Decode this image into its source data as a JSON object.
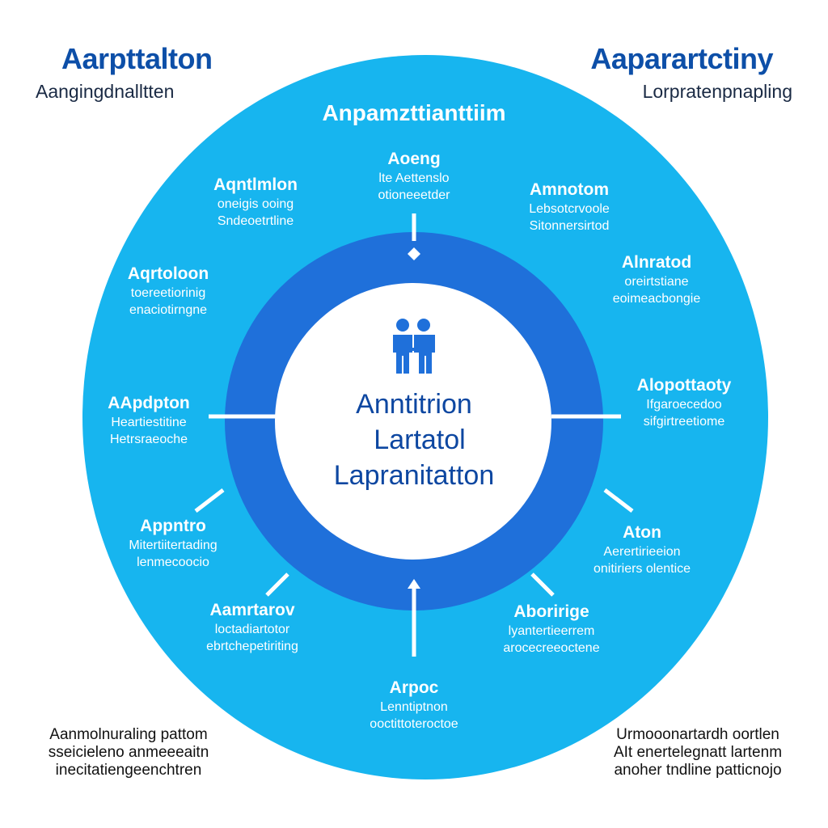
{
  "corners": {
    "top_left": {
      "title": "Aarpttalton",
      "subtitle": "Aangingdnalltten"
    },
    "top_right": {
      "title": "Aaparartctiny",
      "subtitle": "Lorpratenpnapling"
    },
    "bottom_left": {
      "lines": [
        "Aanmolnuraling pattom",
        "sseicieleno anmeeeaitn",
        "inecitatiengeenchtren"
      ]
    },
    "bottom_right": {
      "lines": [
        "Urmooonartardh oortlen",
        "AIt enertelegnatt lartenm",
        "anoher tndline patticnojo"
      ]
    }
  },
  "diagram": {
    "heading": "Anpamzttianttiim",
    "center": {
      "icon": "people-icon",
      "lines": [
        "Anntitrion",
        "Lartatol",
        "Lapranitatton"
      ]
    },
    "items": [
      {
        "title": "Aoeng",
        "lines": [
          "lte Aettenslo",
          "otioneeetder"
        ]
      },
      {
        "title": "Amnotom",
        "lines": [
          "Lebsotcrvoole",
          "Sitonnersirtod"
        ]
      },
      {
        "title": "Alnratod",
        "lines": [
          "oreirtstiane",
          "eoimeacbongie"
        ]
      },
      {
        "title": "Alopottaoty",
        "lines": [
          "Ifgaroecedoo",
          "sifgirtreetiome"
        ]
      },
      {
        "title": "Aton",
        "lines": [
          "Aerertirieeion",
          "onitiriers olentice"
        ]
      },
      {
        "title": "Aboririge",
        "lines": [
          "lyantertieerrem",
          "arocecreeoctene"
        ]
      },
      {
        "title": "Arpoc",
        "lines": [
          "Lenntiptnon",
          "ooctittoteroctoe"
        ]
      },
      {
        "title": "Aamrtarov",
        "lines": [
          "loctadiartotor",
          "ebrtchepetiriting"
        ]
      },
      {
        "title": "Appntro",
        "lines": [
          "Mitertiitertading",
          "lenmecoocio"
        ]
      },
      {
        "title": "AApdpton",
        "lines": [
          "Heartiestitine",
          "Hetrsraeoche"
        ]
      },
      {
        "title": "Aqrtoloon",
        "lines": [
          "toereetiorinig",
          "enaciotirngne"
        ]
      },
      {
        "title": "Aqntlmlon",
        "lines": [
          "oneigis ooing",
          "Sndeoetrtline"
        ]
      }
    ]
  },
  "colors": {
    "outer_circle": "#17b5ef",
    "ring": "#1f70da",
    "inner": "#ffffff",
    "corner_title": "#0d4fa8"
  }
}
